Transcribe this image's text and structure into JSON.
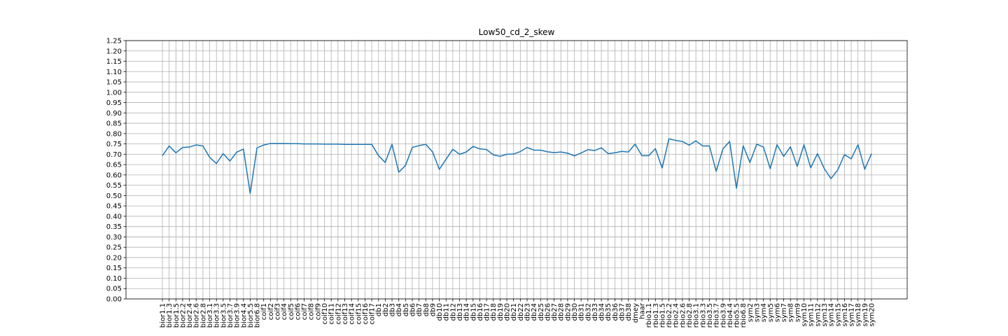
{
  "chart_data": {
    "type": "line",
    "title": "Low50_cd_2_skew",
    "xlabel": "",
    "ylabel": "",
    "ylim": [
      0,
      1.25
    ],
    "yticks": [
      "0.00",
      "0.05",
      "0.10",
      "0.15",
      "0.20",
      "0.25",
      "0.30",
      "0.35",
      "0.40",
      "0.45",
      "0.50",
      "0.55",
      "0.60",
      "0.65",
      "0.70",
      "0.75",
      "0.80",
      "0.85",
      "0.90",
      "0.95",
      "1.00",
      "1.05",
      "1.10",
      "1.15",
      "1.20",
      "1.25"
    ],
    "grid": true,
    "series_color": "#1f77b4",
    "categories": [
      "bior1.1",
      "bior1.3",
      "bior1.5",
      "bior2.2",
      "bior2.4",
      "bior2.6",
      "bior2.8",
      "bior3.1",
      "bior3.3",
      "bior3.5",
      "bior3.7",
      "bior3.9",
      "bior4.4",
      "bior5.5",
      "bior6.8",
      "coif1",
      "coif2",
      "coif3",
      "coif4",
      "coif5",
      "coif6",
      "coif7",
      "coif8",
      "coif9",
      "coif10",
      "coif11",
      "coif12",
      "coif13",
      "coif14",
      "coif15",
      "coif16",
      "coif17",
      "db1",
      "db2",
      "db3",
      "db4",
      "db5",
      "db6",
      "db7",
      "db8",
      "db9",
      "db10",
      "db11",
      "db12",
      "db13",
      "db14",
      "db15",
      "db16",
      "db17",
      "db18",
      "db19",
      "db20",
      "db21",
      "db22",
      "db23",
      "db24",
      "db25",
      "db26",
      "db27",
      "db28",
      "db29",
      "db30",
      "db31",
      "db32",
      "db33",
      "db34",
      "db35",
      "db36",
      "db37",
      "db38",
      "dmey",
      "haar",
      "rbio1.1",
      "rbio1.3",
      "rbio1.5",
      "rbio2.2",
      "rbio2.4",
      "rbio2.6",
      "rbio2.8",
      "rbio3.1",
      "rbio3.3",
      "rbio3.5",
      "rbio3.7",
      "rbio3.9",
      "rbio4.4",
      "rbio5.5",
      "rbio6.8",
      "sym2",
      "sym3",
      "sym4",
      "sym5",
      "sym6",
      "sym7",
      "sym8",
      "sym9",
      "sym10",
      "sym11",
      "sym12",
      "sym13",
      "sym14",
      "sym15",
      "sym16",
      "sym17",
      "sym18",
      "sym19",
      "sym20"
    ],
    "values": [
      0.693,
      0.74,
      0.707,
      0.733,
      0.735,
      0.745,
      0.74,
      0.685,
      0.655,
      0.703,
      0.667,
      0.71,
      0.725,
      0.51,
      0.73,
      0.745,
      0.752,
      0.752,
      0.752,
      0.751,
      0.751,
      0.75,
      0.75,
      0.75,
      0.749,
      0.749,
      0.749,
      0.748,
      0.748,
      0.748,
      0.748,
      0.748,
      0.693,
      0.66,
      0.748,
      0.613,
      0.646,
      0.733,
      0.742,
      0.748,
      0.712,
      0.627,
      0.676,
      0.724,
      0.7,
      0.711,
      0.738,
      0.726,
      0.723,
      0.697,
      0.69,
      0.7,
      0.701,
      0.713,
      0.733,
      0.72,
      0.72,
      0.712,
      0.708,
      0.711,
      0.705,
      0.692,
      0.706,
      0.722,
      0.718,
      0.731,
      0.703,
      0.707,
      0.714,
      0.711,
      0.749,
      0.693,
      0.693,
      0.727,
      0.633,
      0.775,
      0.767,
      0.762,
      0.744,
      0.765,
      0.74,
      0.74,
      0.617,
      0.726,
      0.762,
      0.535,
      0.741,
      0.66,
      0.749,
      0.735,
      0.63,
      0.746,
      0.69,
      0.736,
      0.641,
      0.746,
      0.634,
      0.703,
      0.631,
      0.582,
      0.624,
      0.698,
      0.678,
      0.746,
      0.627,
      0.703
    ]
  }
}
